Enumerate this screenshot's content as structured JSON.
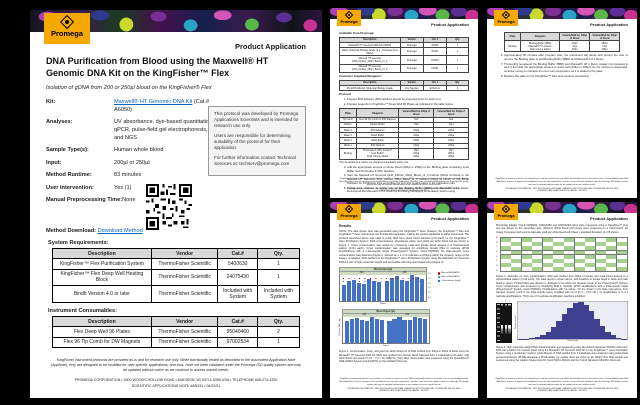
{
  "header": {
    "brand": "Promega",
    "doc_type": "Product Application"
  },
  "colors": {
    "promega_orange": "#f5a800",
    "link_blue": "#0563c1",
    "bar_blue": "#4472c4",
    "dot_red": "#c00000",
    "dot_blue": "#2e74b5",
    "plate_green": "#a9d18e",
    "hist_navy": "#3f3f8f",
    "table_header_gray": "#d9d9d9",
    "chart_band_green": "#cfdcc3"
  },
  "page1": {
    "title": "DNA Purification from Blood using the Maxwell® HT Genomic DNA Kit on the KingFisher™ Flex",
    "subtitle": "Isolation of gDNA from 200 or 250µl blood on the KingFisher® Flex",
    "kit_label": "Kit:",
    "kit_link": "Maxwell® HT Genomic DNA Kit",
    "kit_suffix": " (Cat.# A6050)",
    "fields": [
      {
        "label": "Analyses:",
        "value": "UV absorbance, dye-based quantitation, qPCR, pulse-field gel electrophoresis, and NGS"
      },
      {
        "label": "Sample Type(s):",
        "value": "Human whole blood"
      },
      {
        "label": "Input:",
        "value": "200µl or 250µl"
      },
      {
        "label": "Method Runtime:",
        "value": "83 minutes"
      },
      {
        "label": "User Intervention:",
        "value": "Yes (1)"
      },
      {
        "label": "Manual Preprocessing Time:",
        "value": "None"
      }
    ],
    "notice": [
      "This protocol was developed by Promega Applications Scientists and is intended for research use only.",
      "Users are responsible for determining suitability of the protocol for their application.",
      "For further information contact Technical Services at: techserv@promega.com"
    ],
    "method_download_label": "Method Download: ",
    "method_download_link": "Download Method",
    "sysreq_title": "System Requirements:",
    "sysreq_head": [
      "Description",
      "Vendor",
      "Cat.#",
      "Qty."
    ],
    "sysreq_rows": [
      [
        "KingFisher™ Flex Purification System",
        "ThermoFisher Scientific",
        "5400630",
        "1"
      ],
      [
        "KingFisher™ Flex Deep Well Heating Block",
        "ThermoFisher Scientific",
        "24075430",
        "1"
      ],
      [
        "BindIt Version 4.0 or later",
        "ThermoFisher Scientific",
        "Included with System",
        "Included with System"
      ]
    ],
    "consumables_title": "Instrument Consumables:",
    "consumables_head": [
      "Description",
      "Vendor",
      "Cat.#",
      "Qty."
    ],
    "consumables_rows": [
      [
        "Flex Deep Well 96 Plates",
        "ThermoFisher Scientific",
        "95040460",
        "2"
      ],
      [
        "Flex 96 Tip Comb for DW Magnets",
        "ThermoFisher Scientific",
        "97002534",
        "1"
      ]
    ],
    "disclaimer": "KingFisher instrument protocols are provided as-is and for research use only. While functionally tested as described in the associated Application Note (AppNote), they are designed to be modified for user-specific applications, and thus, have not been validated under the Promega ISO quality system and may be updated without notice as we continue to assess market needs.",
    "address": "PROMEGA CORPORATION • 2800 WOODS HOLLOW ROAD • MADISON, WI 53711-5399 USA • TELEPHONE 608-274-4330",
    "docline": "SCIENTIFIC APPLICATIONS NOTE  #AN331 • 04/22/21"
  },
  "page2": {
    "available_title": "Available from Promega:",
    "table_head": [
      "Description",
      "Vendor",
      "Cat. #",
      "Qty."
    ],
    "available_rows": [
      [
        "Maxwell® HT Genomic DNA Kit (A6050)",
        "Promega",
        "A6050",
        "1"
      ],
      [
        "Water, Molecular Biology Grade (e.g., Nuclease-Free Water)",
        "Promega",
        "P1197",
        "1"
      ],
      [
        "Maxwell HT Genomic DNA_KFFlex_200ul_Blood_v1_0",
        "Promega",
        "KF050",
        "1"
      ],
      [
        "Maxwell HT Genomic DNA_KFFlex_250ul_Blood_v1_0",
        "Promega",
        "KF051",
        "1"
      ]
    ],
    "customer_title": "Customer Supplied Reagents:",
    "customer_rows": [
      [
        "95-100% Ethanol, Molecular Biology Grade",
        "Any Supplier",
        "E7023-1L",
        "1"
      ]
    ],
    "protocol_title": "Protocol",
    "steps_a": [
      "Prepare 80% Ethanol. (80% Ethanol should be prepared fresh for each run.)",
      "Prepare reagents in KingFisher™ Deep Well 96 Plates as indicated in the table below:"
    ],
    "plate_head": [
      "Plate",
      "Reagents",
      "Volume/Well for 200µl of blood",
      "Volume/Well for 250µl of blood"
    ],
    "plate_rows": [
      [
        "Tip Comb",
        "Flex 96 Tip Comb for DW Magnets",
        "N/A",
        "N/A"
      ],
      [
        "Elution",
        "Elution Buffer",
        "70µl",
        "70µl"
      ],
      [
        "Wash 4",
        "80% Ethanol",
        "230µl",
        "230µl"
      ],
      [
        "Wash 3",
        "Wash Buffer",
        "230µl",
        "230µl"
      ],
      [
        "Wash 2",
        "Wash Buffer",
        "230µl",
        "230µl"
      ],
      [
        "Wash 1",
        "80% Ethanol",
        "230µl",
        "230µl"
      ],
      [
        "Binding",
        "Proteinase K (PK) Solution*\nLysis Buffer*\nFinal Volume added",
        "25µl\n230µl\n255µl",
        "25µl\n280µl\n305µl"
      ]
    ],
    "footnote": "*Can be added as a master mix prepared immediately before use.",
    "steps_b": [
      "Add the appropriate amount of whole blood (200µl or 250µl) to the Binding plate containing Lysis Buffer and Proteinase K (PK) Solution.",
      "Start the Maxwell HT Genomic DNA_KFFlex_200ul_Blood_v1_0 method (200µl of blood) or the Maxwell HT Genomic DNA_KFFlex_250ul_Blood_v1_0 method (250µl of blood) in the BindIt Software for KingFisher Flex and follow the prompts to add plates in the indicated order.",
      "During lysis, prepare a master mix of the Binding Buffer (BBD) and Maxwell® HT-1 Resin. Resuspend the Maxwell® HT-1 Resin by vortexing thoroughly immediately before using."
    ]
  },
  "page3": {
    "plate_rows": [
      [
        "Binding",
        "Binding Buffer (BBD)\nMaxwell® HT-1 Resin\nTotal volume added",
        "230µl\n15µl\n245µl",
        "280µl\n15µl\n295µl"
      ]
    ],
    "steps": [
      "Approximately 45 minutes after program start, the instrument will pause and prompt the user to remove the Binding plate to add Binding Buffer (BBD) and Maxwell® HT-1 Resin.",
      "Thoroughly resuspend the Binding Buffer (BBD) and Maxwell® HT-1 Resin master mix prepared in step 5 and add the appropriate amount to each well (245µl or 295µl). As the mixture is dispensed, continue mixing to maintain an even resin suspension as it is added to the plate.",
      "Replace the plate on the KingFisher™ Flex and continue processing."
    ]
  },
  "page4": {
    "results_title": "Results",
    "note": "NOTE: The data shown here was generated using the KingFisher™ Apex however, the KingFisher™ Flex and KingFisher™ Apex instruments are functionally equivalent, making the results applicable to either instrument. The protocol described above was used to purify DNA from whole blood samples (n=8 each) on the KingFisher™ Apex Purification System. DNA concentrations, absorbance ratios, and yields per white blood cell are shown in Figure 1. Cross contamination was tested by processing male and female blood arrayed in a checkerboard pattern (n=24 each). Cross contamination was assessed by amplifying female DNA in replicate qPCR amplifications with a male-specific target (PowerQuant® System, Cat.# PQ5002). No male-specific cross contamination was detected (Figure 2, defined as ≥ 1 of 3 replicates amplifying within the dynamic range of the assay). In addition, DNA purified on the KingFisher™ Apex Purification System using the Maxwell® HT Genomic DNA Kit was of high molecular weight and compatible with long-read sequencing (Figure 3).",
    "fig1_caption": "Figure 1. Concentration, purity, and yield per white blood cell of DNA purified from 200µl or 250µl of blood using the Maxwell® HT Genomic DNA Kit. DNA was purified from human blood collected from 4 individuals (n=8 each), with white blood cell counts of 3.5 – 7.4 × 10⁶ WBC/ml. (Top) DNA concentration was measured using the QuantiFluor® ONE dsDNA System (Cat.# E4871) on the GloMax® Discover"
  },
  "page5": {
    "intro": "Microplate Reader (Cat.# GM3000). A260/A280 and A260/A230 ratios were measured using a NanoDrop™ One and are shown on the secondary axis. (Bottom) White blood cell counts were measured on a Cellometer® K2 Image Cytometer and used to calculate yield per white blood cell. Mean + standard deviation of n=8 shown.",
    "plate_row_labels": [
      "A",
      "B",
      "C",
      "D",
      "E",
      "F",
      "G",
      "H"
    ],
    "checker": {
      "rows": 8,
      "cols": 12
    },
    "gel_lanes": [
      "L",
      "1",
      "2",
      "3"
    ],
    "fig2_caption": "Figure 2. Detection of cross contamination. DNA was purified from 200µl of female and male blood arrayed in a checkerboard pattern (n=24 each). The plate layout is shown above, with locations of female blood in white and male blood in green. Purified DNA was diluted to ~400pg/µl to be within the dynamic range of the PowerQuant® System. Cross contamination was assessed by amplifying DNA in replicate qPCR amplifications with a male-specific target (PowerQuant® System, Cat.# PQ5002). Amplifications with Cq values <37 are shown in the plate map above. Four samples showed n=1/3 of the male-specific assay amplified with Cq of 37.4 – 37.8. NA = no amplification in 3 of 3 replicate amplifications. *Only one of 3 replicate amplification reactions amplified.",
    "fig3_caption": "Figure 3. High molecular weight DNA characterization and sequencing using the Oxford Nanopore MinION instrument. DNA was purified from human blood using the Maxwell® HT Genomic DNA Kit on the KingFisher™ Apex Purification System using a preliminary method. (Left) Aliquots of DNA purified from 3 individuals were analyzed using pulsed-field gel electrophoresis (PFGE) alongside a PFGE ladder (L). Ladder sizes are shown in kb. (Right) One DNA sample was sequenced using the Ligation Sequencing Kit (Cat.# SQK-LSK110) and the Oxford Nanopore MinION instrument."
  },
  "chart_data": [
    {
      "type": "bar",
      "title": "Blood Input (µl)",
      "groups": [
        "200",
        "250"
      ],
      "values": [
        62,
        78,
        84,
        70,
        66,
        88,
        80,
        74,
        78,
        92,
        96,
        84,
        80,
        102,
        94,
        88
      ],
      "legend": [
        "Mean of A260/A280",
        "Mean of A260/A230",
        "Concentration (ng/µl)"
      ],
      "legend_colors": [
        "#c00000",
        "#2e74b5",
        "#4472c4"
      ],
      "right_axis_ticks": [
        "2.5",
        "2.0",
        "1.5",
        "1.0",
        "0.5",
        "0.0"
      ],
      "xlabel": "Donor",
      "ylabel_right": "Absorbance Ratio",
      "ylim": [
        0,
        120
      ],
      "legend_position": "right",
      "grid": false
    },
    {
      "type": "bar",
      "title": "Blood Input (µl)",
      "groups": [
        "200",
        "250"
      ],
      "values": [
        5.8,
        6.4,
        6.9,
        6.1,
        6.0,
        7.0,
        6.6,
        6.3,
        5.9,
        6.6,
        7.1,
        6.2,
        6.1,
        7.2,
        6.8,
        6.4
      ],
      "xlabel": "Donor",
      "ylabel": "Yield per WBC (pg)",
      "ylim": [
        0,
        8
      ],
      "grid": false
    },
    {
      "type": "histogram",
      "values": [
        1,
        2,
        4,
        7,
        12,
        20,
        32,
        50,
        68,
        85,
        97,
        100,
        92,
        76,
        55,
        36,
        21,
        11,
        5,
        2
      ],
      "xlabel": "Read length",
      "ylabel": "Number of reads",
      "ylim": [
        0,
        100
      ]
    }
  ]
}
